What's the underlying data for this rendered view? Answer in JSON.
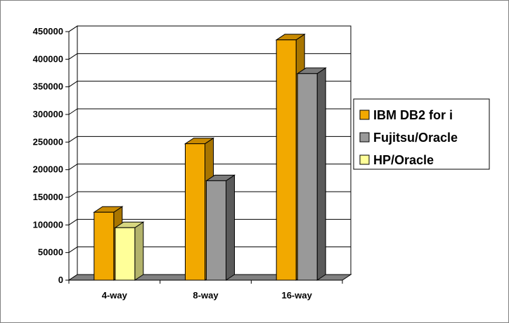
{
  "chart_data": {
    "type": "bar",
    "categories": [
      "4-way",
      "8-way",
      "16-way"
    ],
    "series": [
      {
        "name": "IBM DB2 for i",
        "values": [
          123000,
          247000,
          435000
        ],
        "color": "#F2A900",
        "side_color": "#A87500",
        "top_color": "#C98A00"
      },
      {
        "name": "Fujitsu/Oracle",
        "values": [
          null,
          180000,
          374000
        ],
        "color": "#999999",
        "side_color": "#5a5a5a",
        "top_color": "#7a7a7a"
      },
      {
        "name": "HP/Oracle",
        "values": [
          95000,
          null,
          null
        ],
        "color": "#FFFF99",
        "side_color": "#B3B36B",
        "top_color": "#D6D680"
      }
    ],
    "ylim": [
      0,
      450000
    ],
    "yticks": [
      0,
      50000,
      100000,
      150000,
      200000,
      250000,
      300000,
      350000,
      400000,
      450000
    ],
    "grid": true,
    "legend_position": "right",
    "title": "",
    "xlabel": "",
    "ylabel": ""
  }
}
